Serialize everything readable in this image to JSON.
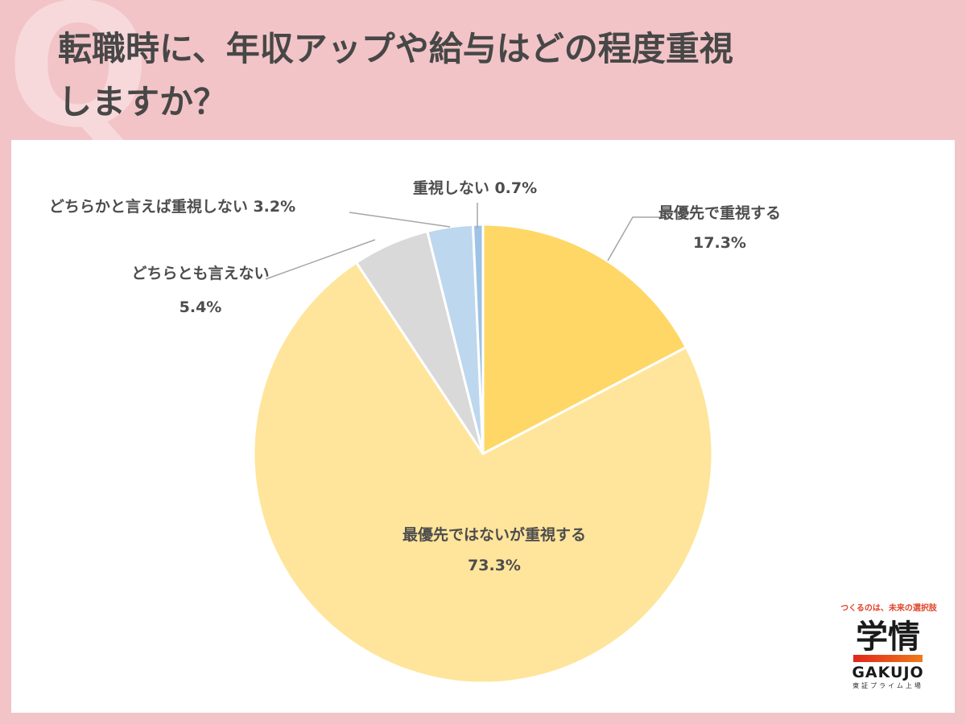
{
  "header": {
    "title_line1": "転職時に、年収アップや給与はどの程度重視",
    "title_line2": "しますか？"
  },
  "chart_data": {
    "type": "pie",
    "slices": [
      {
        "label": "最優先で重視する",
        "value": 17.3,
        "value_text": "17.3%",
        "color": "#ffd766"
      },
      {
        "label": "最優先ではないが重視する",
        "value": 73.3,
        "value_text": "73.3%",
        "color": "#ffe59b"
      },
      {
        "label": "どちらとも言えない",
        "value": 5.4,
        "value_text": "5.4%",
        "color": "#d9d9d9"
      },
      {
        "label": "どちらかと言えば重視しない",
        "value": 3.2,
        "value_text": "3.2%",
        "color": "#bdd7ee"
      },
      {
        "label": "重視しない",
        "value": 0.7,
        "value_text": "0.7%",
        "color": "#9dc3e6"
      }
    ]
  },
  "logo": {
    "tagline": "つくるのは、未来の選択肢",
    "kanji": "学情",
    "english": "GAKUJO",
    "sub": "東証プライム上場"
  }
}
